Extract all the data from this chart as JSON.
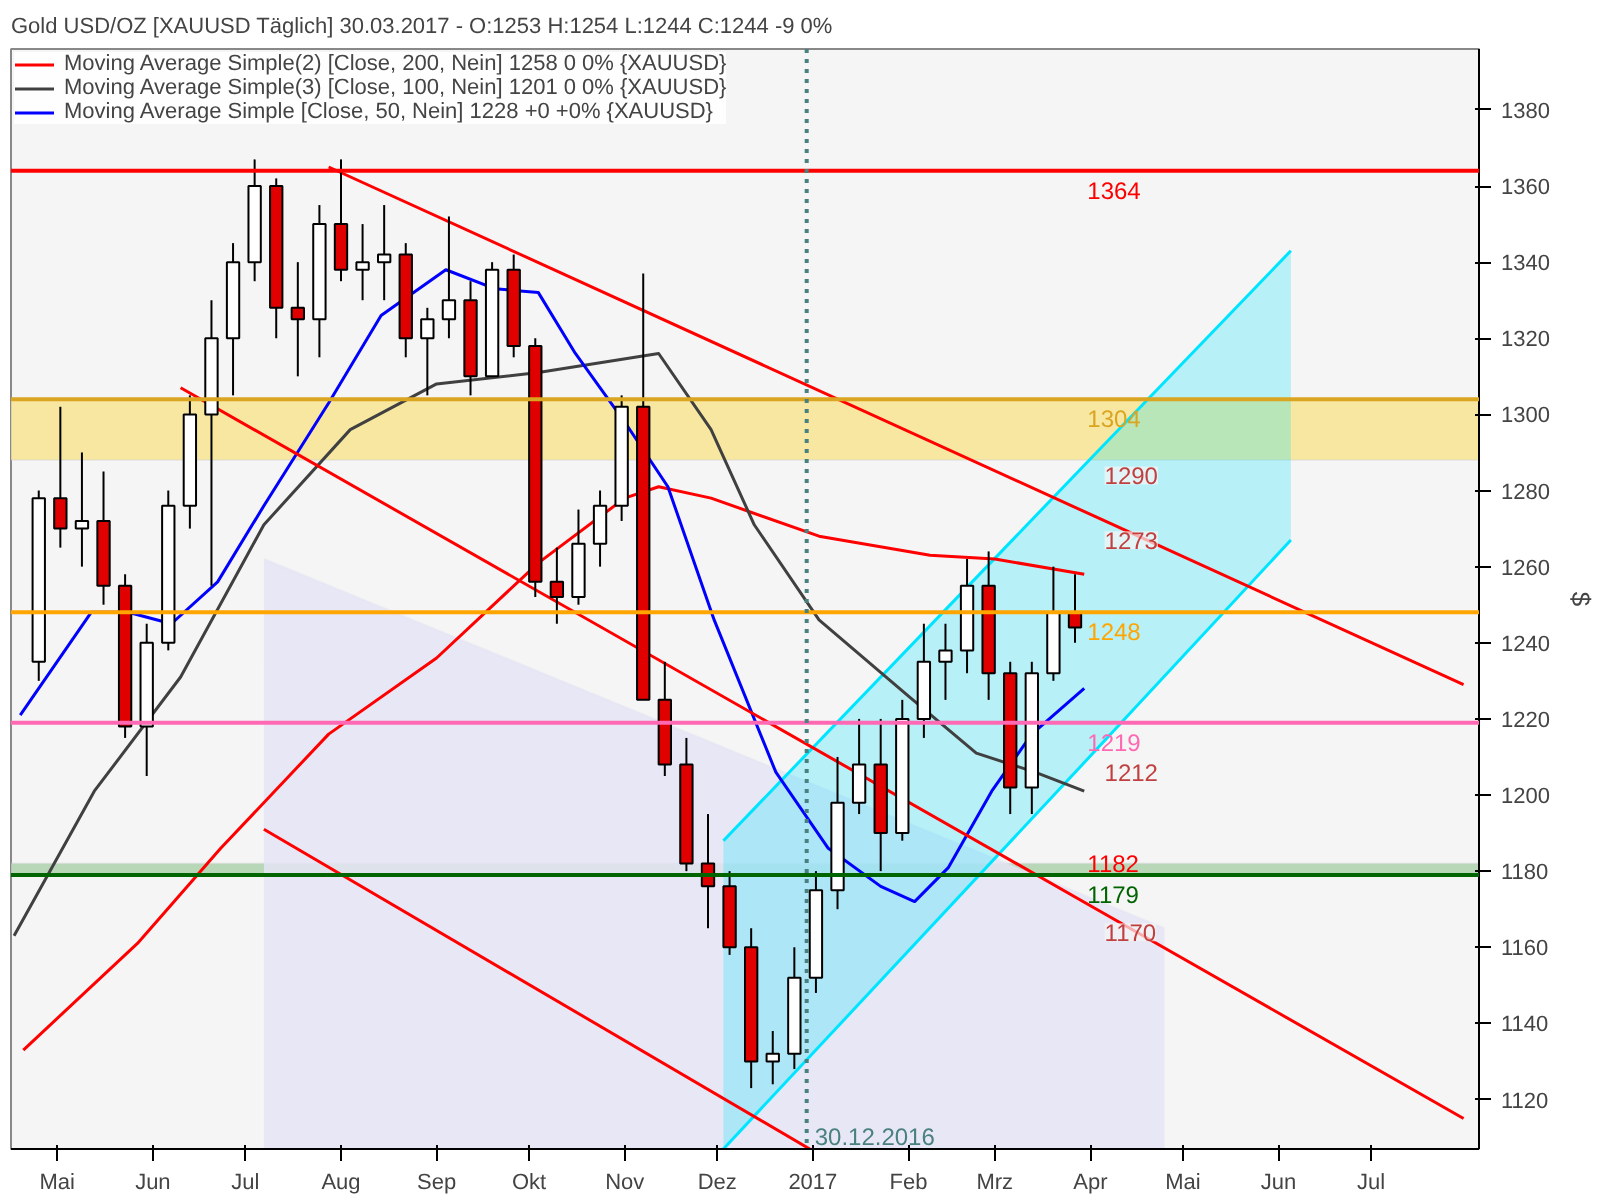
{
  "chart_data": {
    "type": "candlestick",
    "title": "Gold USD/OZ [XAUUSD  Täglich] 30.03.2017 - O:1253 H:1254 L:1244 C:1244 -9 0%",
    "ylabel": "$",
    "x": [
      "2016-04-25",
      "2016-05-02",
      "2016-05-09",
      "2016-05-16",
      "2016-05-23",
      "2016-05-30",
      "2016-06-06",
      "2016-06-13",
      "2016-06-20",
      "2016-06-27",
      "2016-07-04",
      "2016-07-11",
      "2016-07-18",
      "2016-07-25",
      "2016-08-01",
      "2016-08-08",
      "2016-08-15",
      "2016-08-22",
      "2016-08-29",
      "2016-09-05",
      "2016-09-12",
      "2016-09-19",
      "2016-09-26",
      "2016-10-03",
      "2016-10-10",
      "2016-10-17",
      "2016-10-24",
      "2016-10-31",
      "2016-11-07",
      "2016-11-14",
      "2016-11-21",
      "2016-11-28",
      "2016-12-05",
      "2016-12-12",
      "2016-12-19",
      "2016-12-26",
      "2017-01-02",
      "2017-01-09",
      "2017-01-16",
      "2017-01-23",
      "2017-01-30",
      "2017-02-06",
      "2017-02-13",
      "2017-02-20",
      "2017-02-27",
      "2017-03-06",
      "2017-03-13",
      "2017-03-20",
      "2017-03-27"
    ],
    "ohlc": [
      [
        1235,
        1280,
        1230,
        1278
      ],
      [
        1278,
        1302,
        1265,
        1270
      ],
      [
        1270,
        1290,
        1260,
        1272
      ],
      [
        1272,
        1285,
        1250,
        1255
      ],
      [
        1255,
        1258,
        1215,
        1218
      ],
      [
        1218,
        1245,
        1205,
        1240
      ],
      [
        1240,
        1280,
        1238,
        1276
      ],
      [
        1276,
        1305,
        1270,
        1300
      ],
      [
        1300,
        1330,
        1255,
        1320
      ],
      [
        1320,
        1345,
        1305,
        1340
      ],
      [
        1340,
        1367,
        1335,
        1360
      ],
      [
        1360,
        1362,
        1320,
        1328
      ],
      [
        1328,
        1340,
        1310,
        1325
      ],
      [
        1325,
        1355,
        1315,
        1350
      ],
      [
        1350,
        1367,
        1335,
        1338
      ],
      [
        1338,
        1350,
        1330,
        1340
      ],
      [
        1340,
        1355,
        1330,
        1342
      ],
      [
        1342,
        1345,
        1315,
        1320
      ],
      [
        1320,
        1328,
        1305,
        1325
      ],
      [
        1325,
        1352,
        1320,
        1330
      ],
      [
        1330,
        1335,
        1305,
        1310
      ],
      [
        1310,
        1340,
        1310,
        1338
      ],
      [
        1338,
        1342,
        1315,
        1318
      ],
      [
        1318,
        1320,
        1252,
        1256
      ],
      [
        1256,
        1265,
        1245,
        1252
      ],
      [
        1252,
        1275,
        1250,
        1266
      ],
      [
        1266,
        1280,
        1260,
        1276
      ],
      [
        1276,
        1305,
        1272,
        1302
      ],
      [
        1302,
        1337,
        1225,
        1225
      ],
      [
        1225,
        1235,
        1205,
        1208
      ],
      [
        1208,
        1215,
        1180,
        1182
      ],
      [
        1182,
        1195,
        1165,
        1176
      ],
      [
        1176,
        1180,
        1158,
        1160
      ],
      [
        1160,
        1165,
        1123,
        1130
      ],
      [
        1130,
        1138,
        1124,
        1132
      ],
      [
        1132,
        1160,
        1128,
        1152
      ],
      [
        1152,
        1180,
        1148,
        1175
      ],
      [
        1175,
        1210,
        1170,
        1198
      ],
      [
        1198,
        1220,
        1195,
        1208
      ],
      [
        1208,
        1220,
        1180,
        1190
      ],
      [
        1190,
        1225,
        1188,
        1220
      ],
      [
        1220,
        1245,
        1215,
        1235
      ],
      [
        1235,
        1245,
        1225,
        1238
      ],
      [
        1238,
        1262,
        1232,
        1255
      ],
      [
        1255,
        1264,
        1225,
        1232
      ],
      [
        1232,
        1235,
        1195,
        1202
      ],
      [
        1202,
        1235,
        1195,
        1232
      ],
      [
        1232,
        1260,
        1230,
        1248
      ],
      [
        1248,
        1258,
        1240,
        1244
      ]
    ],
    "series": [
      {
        "type": "area",
        "color": "#e4e4f4",
        "x": [
          "2016-07-07",
          "2017-04-25"
        ],
        "values": [
          1262,
          1165
        ]
      },
      {
        "type": "line",
        "color": "#00e5ff",
        "x": [
          "2016-12-03",
          "2017-04-03",
          "2017-06-05"
        ],
        "values": [
          1188,
          1290,
          1343
        ],
        "lower": [
          1107,
          1212,
          1267
        ],
        "upper": [
          1188,
          1290,
          1343
        ]
      },
      {
        "type": "line",
        "color": "#00e5ff",
        "x": [
          "2016-12-03",
          "2017-04-03",
          "2017-06-05"
        ],
        "values": [
          1107,
          1212,
          1267
        ]
      },
      {
        "type": "line",
        "name": "Moving Average Simple(2) [Close, 200, Nein] 1258 0 0% {XAUUSD}",
        "color": "#ff0000",
        "x": [
          "2016-04-20",
          "2016-05-27",
          "2016-06-23",
          "2016-07-28",
          "2016-09-01",
          "2016-10-04",
          "2016-11-01",
          "2016-11-12",
          "2016-11-29",
          "2017-01-03",
          "2017-02-08",
          "2017-03-01",
          "2017-03-30"
        ],
        "values": [
          1133,
          1161,
          1186,
          1216,
          1236,
          1261,
          1278,
          1281,
          1278,
          1268,
          1263,
          1262,
          1258
        ]
      },
      {
        "type": "line",
        "name": "Moving Average Simple(3) [Close, 100, Nein] 1201 0 0% {XAUUSD}",
        "color": "#404040",
        "x": [
          "2016-04-17",
          "2016-05-13",
          "2016-06-10",
          "2016-07-07",
          "2016-08-04",
          "2016-09-01",
          "2016-10-04",
          "2016-11-12",
          "2016-11-29",
          "2016-12-13",
          "2017-01-03",
          "2017-02-01",
          "2017-02-23",
          "2017-03-14",
          "2017-03-30"
        ],
        "values": [
          1163,
          1201,
          1231,
          1271,
          1296,
          1308,
          1311,
          1316,
          1296,
          1271,
          1246,
          1226,
          1211,
          1206,
          1201
        ]
      },
      {
        "type": "line",
        "name": "Moving Average Simple [Close, 50, Nein] 1228 +0 +0% {XAUUSD}",
        "color": "#0000ff",
        "x": [
          "2016-04-19",
          "2016-05-12",
          "2016-05-24",
          "2016-06-07",
          "2016-06-22",
          "2016-07-07",
          "2016-07-28",
          "2016-08-14",
          "2016-09-04",
          "2016-09-20",
          "2016-10-04",
          "2016-10-16",
          "2016-11-01",
          "2016-11-15",
          "2016-11-30",
          "2016-12-20",
          "2017-01-06",
          "2017-01-23",
          "2017-02-03",
          "2017-02-14",
          "2017-02-28",
          "2017-03-13",
          "2017-03-30"
        ],
        "values": [
          1221,
          1248,
          1248,
          1245,
          1256,
          1276,
          1303,
          1326,
          1338,
          1333,
          1332,
          1316,
          1298,
          1281,
          1246,
          1206,
          1186,
          1176,
          1172,
          1181,
          1201,
          1216,
          1228
        ]
      },
      {
        "type": "line",
        "color": "#ff0000",
        "x": [
          "2016-07-28",
          "2017-04-03",
          "2017-07-31"
        ],
        "values": [
          1365,
          1273,
          1229
        ]
      },
      {
        "type": "line",
        "color": "#ff0000",
        "x": [
          "2016-06-10",
          "2017-04-03",
          "2017-07-31"
        ],
        "values": [
          1307,
          1170,
          1115
        ]
      },
      {
        "type": "line",
        "color": "#ff0000",
        "x": [
          "2016-07-07",
          "2016-12-31"
        ],
        "values": [
          1191,
          1107
        ]
      }
    ],
    "xlim": [
      "2016-04-16",
      "2017-08-05"
    ],
    "xticks": [
      {
        "value": "2016-05-01",
        "label": "Mai"
      },
      {
        "value": "2016-06-01",
        "label": "Jun"
      },
      {
        "value": "2016-07-01",
        "label": "Jul"
      },
      {
        "value": "2016-08-01",
        "label": "Aug"
      },
      {
        "value": "2016-09-01",
        "label": "Sep"
      },
      {
        "value": "2016-10-01",
        "label": "Okt"
      },
      {
        "value": "2016-11-01",
        "label": "Nov"
      },
      {
        "value": "2016-12-01",
        "label": "Dez"
      },
      {
        "value": "2017-01-01",
        "label": "2017"
      },
      {
        "value": "2017-02-01",
        "label": "Feb"
      },
      {
        "value": "2017-03-01",
        "label": "Mrz"
      },
      {
        "value": "2017-04-01",
        "label": "Apr"
      },
      {
        "value": "2017-05-01",
        "label": "Mai"
      },
      {
        "value": "2017-06-01",
        "label": "Jun"
      },
      {
        "value": "2017-07-01",
        "label": "Jul"
      }
    ],
    "ylim": [
      1107,
      1396
    ],
    "yticks": [
      1120,
      1140,
      1160,
      1180,
      1200,
      1220,
      1240,
      1260,
      1280,
      1300,
      1320,
      1340,
      1360,
      1380
    ],
    "bands": [
      {
        "axis": "y",
        "from": 1288,
        "to": 1304,
        "color": "#f8e48c"
      },
      {
        "axis": "y",
        "from": 1179,
        "to": 1182,
        "label": "1182",
        "color": "#a8d0a8"
      }
    ],
    "ref_lines": [
      {
        "axis": "y",
        "value": 1364,
        "label": "1364",
        "color": "#ff0000"
      },
      {
        "axis": "y",
        "value": 1304,
        "label": "1304",
        "color": "#daa520"
      },
      {
        "axis": "y",
        "value": 1248,
        "label": "1248",
        "color": "#ffa500"
      },
      {
        "axis": "y",
        "value": 1219,
        "label": "1219",
        "color": "#ff69b4"
      },
      {
        "axis": "y",
        "value": 1179,
        "label": "1179",
        "color": "#006400"
      },
      {
        "axis": "x",
        "value": "2016-12-30",
        "label": "30.12.2016",
        "color": "#4a8080",
        "line_style": "dotted"
      }
    ],
    "annotations": [
      {
        "text": "1290",
        "x": "2017-04-03",
        "y": 1290
      },
      {
        "text": "1273",
        "x": "2017-04-03",
        "y": 1273
      },
      {
        "text": "1212",
        "x": "2017-04-03",
        "y": 1212
      },
      {
        "text": "1170",
        "x": "2017-04-03",
        "y": 1170
      }
    ],
    "legend": "top left",
    "grid": false
  }
}
